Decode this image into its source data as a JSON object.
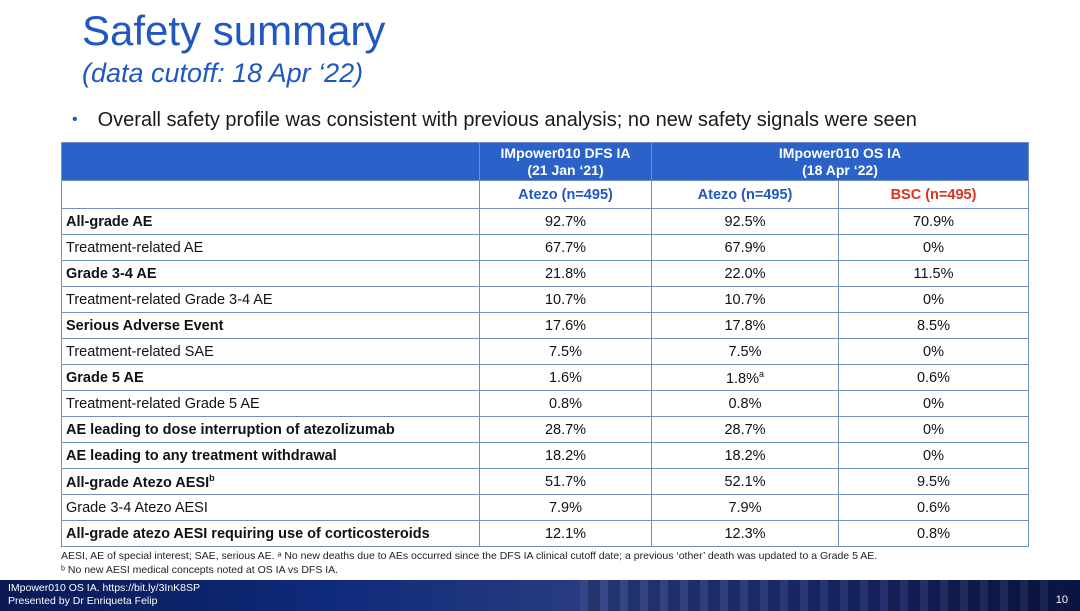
{
  "title": "Safety summary",
  "subtitle": "(data cutoff: 18 Apr ‘22)",
  "bullet": "Overall safety profile was consistent with previous analysis; no new safety signals were seen",
  "table": {
    "headers": {
      "dfs_line1": "IMpower010 DFS IA",
      "dfs_line2": "(21 Jan ‘21)",
      "os_line1": "IMpower010 OS IA",
      "os_line2": "(18 Apr ‘22)"
    },
    "arms": {
      "dfs_atezo": "Atezo (n=495)",
      "os_atezo": "Atezo (n=495)",
      "os_bsc": "BSC (n=495)"
    },
    "rows": [
      {
        "label": "All-grade AE",
        "dfs": "92.7%",
        "os_atezo": "92.5%",
        "os_bsc": "70.9%"
      },
      {
        "label": "Treatment-related AE",
        "dfs": "67.7%",
        "os_atezo": "67.9%",
        "os_bsc": "0%"
      },
      {
        "label": "Grade 3-4 AE",
        "dfs": "21.8%",
        "os_atezo": "22.0%",
        "os_bsc": "11.5%"
      },
      {
        "label": "Treatment-related Grade 3-4 AE",
        "dfs": "10.7%",
        "os_atezo": "10.7%",
        "os_bsc": "0%"
      },
      {
        "label": "Serious Adverse Event",
        "dfs": "17.6%",
        "os_atezo": "17.8%",
        "os_bsc": "8.5%"
      },
      {
        "label": "Treatment-related SAE",
        "dfs": "7.5%",
        "os_atezo": "7.5%",
        "os_bsc": "0%"
      },
      {
        "label": "Grade 5 AE",
        "dfs": "1.6%",
        "os_atezo": "1.8%",
        "os_atezo_sup": "a",
        "os_bsc": "0.6%"
      },
      {
        "label": "Treatment-related Grade 5 AE",
        "dfs": "0.8%",
        "os_atezo": "0.8%",
        "os_bsc": "0%"
      },
      {
        "label": "AE leading to dose interruption of atezolizumab",
        "dfs": "28.7%",
        "os_atezo": "28.7%",
        "os_bsc": "0%"
      },
      {
        "label": "AE leading to any treatment withdrawal",
        "dfs": "18.2%",
        "os_atezo": "18.2%",
        "os_bsc": "0%"
      },
      {
        "label": "All-grade Atezo AESI",
        "label_sup": "b",
        "dfs": "51.7%",
        "os_atezo": "52.1%",
        "os_bsc": "9.5%"
      },
      {
        "label": "Grade 3-4 Atezo AESI",
        "dfs": "7.9%",
        "os_atezo": "7.9%",
        "os_bsc": "0.6%"
      },
      {
        "label": "All-grade atezo AESI requiring use of corticosteroids",
        "dfs": "12.1%",
        "os_atezo": "12.3%",
        "os_bsc": "0.8%"
      }
    ]
  },
  "footnotes": {
    "line1": "AESI, AE of special interest; SAE, serious AE. ᵃ No new deaths due to AEs occurred since the DFS IA clinical cutoff date; a previous ‘other’ death was updated to a Grade 5 AE.",
    "line2": "ᵇ No new AESI medical concepts noted at OS IA vs DFS IA."
  },
  "footer": {
    "line1": "IMpower010 OS IA. https://bit.ly/3InK8SP",
    "line2": "Presented by Dr Enriqueta Felip",
    "page_number": "10"
  },
  "colors": {
    "accent_blue": "#1f57c3",
    "header_band": "#2a62c9",
    "bsc_red": "#e03020"
  }
}
